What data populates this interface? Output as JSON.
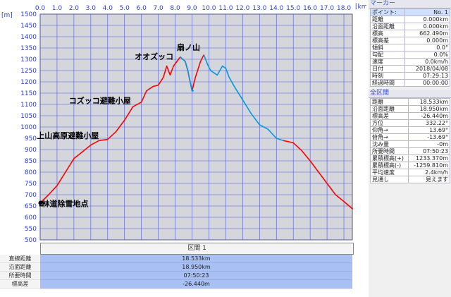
{
  "chart_data": {
    "type": "line",
    "x_unit": "[km]",
    "y_unit": "[m]",
    "xlim": [
      0,
      18.5
    ],
    "ylim": [
      500,
      1500
    ],
    "x_ticks": [
      "0.0",
      "1.0",
      "2.0",
      "3.0",
      "4.0",
      "5.0",
      "6.0",
      "7.0",
      "8.0",
      "9.0",
      "10.0",
      "11.0",
      "12.0",
      "13.0",
      "14.0",
      "15.0",
      "16.0",
      "17.0",
      "18.0"
    ],
    "y_ticks": [
      "1500",
      "1450",
      "1400",
      "1350",
      "1300",
      "1250",
      "1200",
      "1150",
      "1100",
      "1050",
      "1000",
      "950",
      "900",
      "850",
      "800",
      "750",
      "700",
      "650",
      "600",
      "550",
      "500"
    ],
    "grid": true,
    "series": [
      {
        "color": "#ff0000",
        "values": [
          [
            0,
            663
          ],
          [
            0.5,
            700
          ],
          [
            1,
            740
          ],
          [
            1.5,
            800
          ],
          [
            2,
            860
          ],
          [
            2.5,
            890
          ],
          [
            3,
            920
          ],
          [
            3.5,
            940
          ],
          [
            4,
            945
          ],
          [
            4.5,
            980
          ],
          [
            5,
            1030
          ],
          [
            5.5,
            1090
          ],
          [
            6,
            1110
          ],
          [
            6.3,
            1160
          ],
          [
            6.7,
            1180
          ],
          [
            7,
            1185
          ],
          [
            7.3,
            1220
          ],
          [
            7.5,
            1270
          ],
          [
            7.7,
            1230
          ],
          [
            7.9,
            1270
          ],
          [
            8.3,
            1310
          ],
          [
            8.6,
            1290
          ],
          [
            8.75,
            1250
          ],
          [
            9.0,
            1160
          ],
          [
            9.2,
            1220
          ],
          [
            9.5,
            1290
          ],
          [
            9.7,
            1320
          ]
        ]
      },
      {
        "color": "#0099dd",
        "values": [
          [
            8.3,
            1310
          ],
          [
            8.6,
            1290
          ],
          [
            8.75,
            1250
          ],
          [
            9.0,
            1160
          ],
          [
            9.1,
            1160
          ]
        ]
      },
      {
        "color": "#0099dd",
        "values": [
          [
            9.7,
            1320
          ],
          [
            9.9,
            1280
          ],
          [
            10.1,
            1250
          ],
          [
            10.3,
            1240
          ],
          [
            10.5,
            1230
          ],
          [
            10.8,
            1270
          ],
          [
            11.0,
            1260
          ],
          [
            11.2,
            1220
          ],
          [
            11.5,
            1180
          ],
          [
            12,
            1120
          ],
          [
            12.5,
            1060
          ],
          [
            13,
            1010
          ],
          [
            13.5,
            990
          ],
          [
            14.0,
            950
          ],
          [
            14.4,
            940
          ]
        ]
      },
      {
        "color": "#ff0000",
        "values": [
          [
            14.4,
            940
          ],
          [
            15,
            930
          ],
          [
            15.5,
            895
          ],
          [
            16,
            850
          ],
          [
            16.5,
            800
          ],
          [
            17,
            750
          ],
          [
            17.5,
            700
          ],
          [
            18,
            670
          ],
          [
            18.53,
            636
          ]
        ]
      }
    ],
    "annotations": [
      {
        "text": "扇ノ山",
        "x": 8.1,
        "y": 1340
      },
      {
        "text": "オオズッコ",
        "x": 5.6,
        "y": 1300
      },
      {
        "text": "コズッコ避難小屋",
        "x": 1.7,
        "y": 1105
      },
      {
        "text": "上山高原避難小屋",
        "x": -0.2,
        "y": 950
      },
      {
        "text": "林道除雪地点",
        "x": 0.1,
        "y": 648
      },
      {
        "text": "2",
        "x": -0.1,
        "y": 648
      }
    ]
  },
  "marker": {
    "title": "マーカー",
    "rows": [
      {
        "label": "ポイント:",
        "value": "No. 1",
        "highlight": true
      },
      {
        "label": "距離",
        "value": "0.000km"
      },
      {
        "label": "沿面距離",
        "value": "0.000km"
      },
      {
        "label": "標高",
        "value": "662.490m"
      },
      {
        "label": "標高差",
        "value": "0.000m"
      },
      {
        "label": "傾斜",
        "value": "0.0°"
      },
      {
        "label": "勾配",
        "value": "0.0%"
      },
      {
        "label": "速度",
        "value": "0.0km/h"
      },
      {
        "label": "日付",
        "value": "2018/04/08"
      },
      {
        "label": "時刻",
        "value": "07:29:13"
      },
      {
        "label": "経過時間",
        "value": "00:00:00"
      }
    ]
  },
  "section": {
    "title": "全区間",
    "rows": [
      {
        "label": "距離",
        "value": "18.533km"
      },
      {
        "label": "沿面距離",
        "value": "18.950km"
      },
      {
        "label": "標高差",
        "value": "-26.440m"
      },
      {
        "label": "方位",
        "value": "332.22°"
      },
      {
        "label": "仰角→",
        "value": "13.69°"
      },
      {
        "label": "俯角→",
        "value": "-13.69°"
      },
      {
        "label": "沈み量",
        "value": "-0m"
      },
      {
        "label": "所要時間",
        "value": "07:50:23"
      },
      {
        "label": "累積標高(+)",
        "value": "1233.370m"
      },
      {
        "label": "累積標高(-)",
        "value": "-1259.810m"
      },
      {
        "label": "平均速度",
        "value": "2.4km/h"
      },
      {
        "label": "見通し",
        "value": "見えます"
      }
    ]
  },
  "bottom": {
    "section_label": "区間 1",
    "stats": [
      {
        "label": "直線距離",
        "value": "18.533km"
      },
      {
        "label": "沿面距離",
        "value": "18.950km"
      },
      {
        "label": "所要時間",
        "value": "07:50:23"
      },
      {
        "label": "標高差",
        "value": "-26.440m"
      }
    ]
  }
}
